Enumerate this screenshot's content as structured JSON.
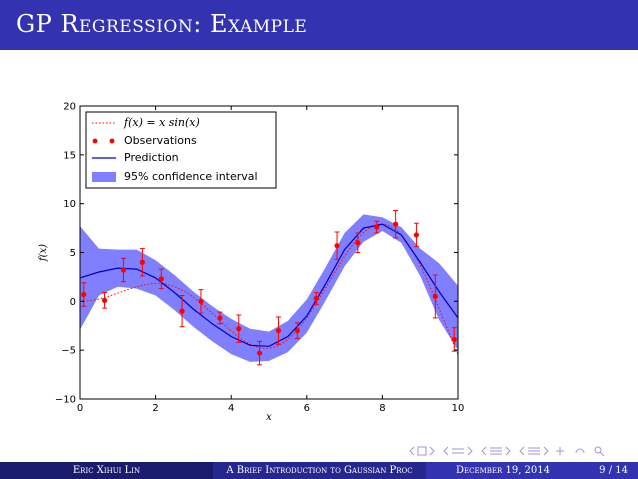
{
  "slide": {
    "title": "GP Regression: Example"
  },
  "footer": {
    "author": "Eric Xihui Lin",
    "short_title": "A Brief Introduction to Gaussian Proc",
    "date": "December 19, 2014",
    "page": "9 / 14"
  },
  "colors": {
    "title_bar": "#3333b2",
    "confidence_fill": "#7f7fff",
    "prediction_line": "#0000bf",
    "observation": "#ff0000",
    "true_function": "#ff0000"
  },
  "nav_icons": [
    "nav-prev-frame-icon",
    "nav-next-frame-icon",
    "nav-prev-subsection-icon",
    "nav-next-subsection-icon",
    "nav-prev-section-icon",
    "nav-next-section-icon",
    "nav-appendix-icon",
    "nav-search-icon"
  ],
  "chart_data": {
    "type": "line",
    "xlabel": "x",
    "ylabel": "f(x)",
    "xlim": [
      0,
      10
    ],
    "ylim": [
      -10,
      20
    ],
    "x_ticks": [
      "0",
      "2",
      "4",
      "6",
      "8",
      "10"
    ],
    "y_ticks": [
      "−10",
      "−5",
      "0",
      "5",
      "10",
      "15",
      "20"
    ],
    "grid": false,
    "legend_position": "top-left",
    "legend": [
      {
        "label": "f(x) = x sin(x)",
        "style": "dotted-line"
      },
      {
        "label": "Observations",
        "style": "points"
      },
      {
        "label": "Prediction",
        "style": "line"
      },
      {
        "label": "95% confidence interval",
        "style": "fill"
      }
    ],
    "true_function": "x*sin(x)",
    "observations": [
      {
        "x": 0.1,
        "y": 0.7,
        "err": 1.2
      },
      {
        "x": 0.65,
        "y": 0.1,
        "err": 0.8
      },
      {
        "x": 1.15,
        "y": 3.2,
        "err": 1.2
      },
      {
        "x": 1.65,
        "y": 4.0,
        "err": 1.4
      },
      {
        "x": 2.15,
        "y": 2.3,
        "err": 1.0
      },
      {
        "x": 2.7,
        "y": -1.0,
        "err": 1.6
      },
      {
        "x": 3.2,
        "y": 0.0,
        "err": 1.2
      },
      {
        "x": 3.7,
        "y": -1.7,
        "err": 0.6
      },
      {
        "x": 4.2,
        "y": -2.8,
        "err": 1.4
      },
      {
        "x": 4.75,
        "y": -5.3,
        "err": 1.2
      },
      {
        "x": 5.25,
        "y": -3.0,
        "err": 1.4
      },
      {
        "x": 5.75,
        "y": -3.0,
        "err": 0.8
      },
      {
        "x": 6.25,
        "y": 0.3,
        "err": 0.6
      },
      {
        "x": 6.8,
        "y": 5.7,
        "err": 1.4
      },
      {
        "x": 7.35,
        "y": 6.0,
        "err": 1.0
      },
      {
        "x": 7.85,
        "y": 7.6,
        "err": 0.6
      },
      {
        "x": 8.35,
        "y": 7.9,
        "err": 1.4
      },
      {
        "x": 8.9,
        "y": 6.8,
        "err": 1.2
      },
      {
        "x": 9.4,
        "y": 0.5,
        "err": 2.2
      },
      {
        "x": 9.9,
        "y": -3.9,
        "err": 1.2
      }
    ],
    "prediction": {
      "x": [
        0,
        0.5,
        1.0,
        1.5,
        2.0,
        2.5,
        3.0,
        3.5,
        4.0,
        4.5,
        5.0,
        5.5,
        6.0,
        6.5,
        7.0,
        7.5,
        8.0,
        8.5,
        9.0,
        9.5,
        10.0
      ],
      "y": [
        2.4,
        3.0,
        3.4,
        3.3,
        2.4,
        0.9,
        -0.8,
        -2.3,
        -3.6,
        -4.5,
        -4.6,
        -3.6,
        -1.5,
        1.8,
        5.3,
        7.5,
        7.9,
        6.8,
        4.0,
        1.0,
        -1.7
      ],
      "lower": [
        -2.9,
        0.6,
        1.5,
        1.3,
        0.6,
        -0.9,
        -2.6,
        -4.1,
        -5.4,
        -6.2,
        -6.1,
        -5.2,
        -3.2,
        0.1,
        3.6,
        6.1,
        7.2,
        6.0,
        2.6,
        -1.9,
        -5.0
      ],
      "upper": [
        7.7,
        5.4,
        5.3,
        5.3,
        4.2,
        2.7,
        1.0,
        -0.5,
        -1.8,
        -2.8,
        -3.1,
        -2.0,
        0.2,
        3.5,
        7.0,
        8.9,
        8.6,
        7.6,
        5.4,
        3.9,
        1.6
      ]
    }
  }
}
